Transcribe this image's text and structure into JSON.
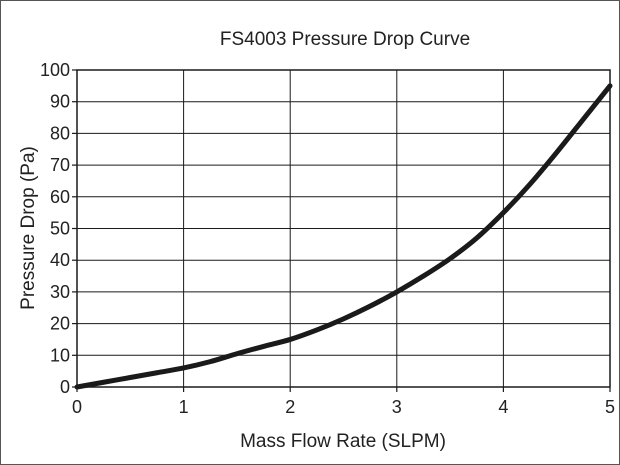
{
  "chart_data": {
    "type": "line",
    "title": "FS4003 Pressure Drop Curve",
    "xlabel": "Mass Flow Rate (SLPM)",
    "ylabel": "Pressure Drop (Pa)",
    "xlim": [
      0,
      5
    ],
    "ylim": [
      0,
      100
    ],
    "x_ticks": [
      "0",
      "1",
      "2",
      "3",
      "4",
      "5"
    ],
    "y_ticks": [
      "0",
      "10",
      "20",
      "30",
      "40",
      "50",
      "60",
      "70",
      "80",
      "90",
      "100"
    ],
    "grid": true,
    "legend": "none",
    "series": [
      {
        "x": [
          0,
          0.25,
          0.5,
          0.75,
          1,
          1.25,
          1.5,
          1.75,
          2,
          2.25,
          2.5,
          2.75,
          3,
          3.25,
          3.5,
          3.75,
          4,
          4.25,
          4.5,
          4.75,
          5
        ],
        "y": [
          0,
          1.5,
          3,
          4.5,
          6,
          8,
          10.5,
          12.8,
          15,
          18,
          21.5,
          25.5,
          30,
          35,
          40.5,
          47,
          55,
          64,
          74,
          84.5,
          95
        ],
        "color": "#1a1a1a"
      }
    ]
  }
}
